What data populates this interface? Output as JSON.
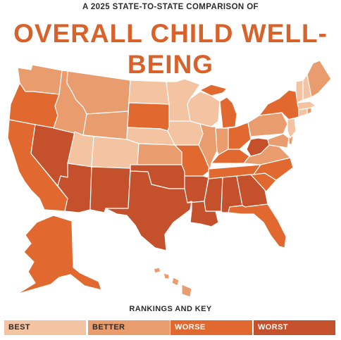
{
  "header": {
    "subtitle": "A 2025 STATE-TO-STATE COMPARISON OF",
    "title": "OVERALL CHILD WELL-BEING"
  },
  "colors": {
    "title": "#d9622b",
    "best": "#f3c3a2",
    "better": "#e99c6e",
    "worse": "#e1692f",
    "worst": "#c4512b"
  },
  "key": {
    "heading": "RANKINGS AND KEY",
    "items": [
      {
        "label": "BEST",
        "tier": "best",
        "text_color": "#2b2b2b"
      },
      {
        "label": "BETTER",
        "tier": "better",
        "text_color": "#2b2b2b"
      },
      {
        "label": "WORSE",
        "tier": "worse",
        "text_color": "#ffffff"
      },
      {
        "label": "WORST",
        "tier": "worst",
        "text_color": "#ffffff"
      }
    ]
  },
  "map": {
    "states": [
      {
        "id": "WA",
        "tier": "better"
      },
      {
        "id": "OR",
        "tier": "worse"
      },
      {
        "id": "CA",
        "tier": "worse"
      },
      {
        "id": "NV",
        "tier": "worst"
      },
      {
        "id": "ID",
        "tier": "better"
      },
      {
        "id": "MT",
        "tier": "better"
      },
      {
        "id": "WY",
        "tier": "better"
      },
      {
        "id": "UT",
        "tier": "best"
      },
      {
        "id": "CO",
        "tier": "best"
      },
      {
        "id": "AZ",
        "tier": "worst"
      },
      {
        "id": "NM",
        "tier": "worst"
      },
      {
        "id": "ND",
        "tier": "best"
      },
      {
        "id": "SD",
        "tier": "worse"
      },
      {
        "id": "NE",
        "tier": "best"
      },
      {
        "id": "KS",
        "tier": "better"
      },
      {
        "id": "OK",
        "tier": "worst"
      },
      {
        "id": "TX",
        "tier": "worst"
      },
      {
        "id": "MN",
        "tier": "best"
      },
      {
        "id": "IA",
        "tier": "best"
      },
      {
        "id": "MO",
        "tier": "worse"
      },
      {
        "id": "AR",
        "tier": "worst"
      },
      {
        "id": "LA",
        "tier": "worst"
      },
      {
        "id": "WI",
        "tier": "best"
      },
      {
        "id": "IL",
        "tier": "better"
      },
      {
        "id": "MI",
        "tier": "worse"
      },
      {
        "id": "IN",
        "tier": "better"
      },
      {
        "id": "OH",
        "tier": "worse"
      },
      {
        "id": "KY",
        "tier": "worse"
      },
      {
        "id": "TN",
        "tier": "worse"
      },
      {
        "id": "MS",
        "tier": "worst"
      },
      {
        "id": "AL",
        "tier": "worst"
      },
      {
        "id": "GA",
        "tier": "worst"
      },
      {
        "id": "FL",
        "tier": "worse"
      },
      {
        "id": "SC",
        "tier": "worse"
      },
      {
        "id": "NC",
        "tier": "worse"
      },
      {
        "id": "VA",
        "tier": "better"
      },
      {
        "id": "WV",
        "tier": "worst"
      },
      {
        "id": "PA",
        "tier": "better"
      },
      {
        "id": "NY",
        "tier": "worse"
      },
      {
        "id": "VT",
        "tier": "best"
      },
      {
        "id": "NH",
        "tier": "best"
      },
      {
        "id": "ME",
        "tier": "better"
      },
      {
        "id": "MA",
        "tier": "best"
      },
      {
        "id": "CT",
        "tier": "best"
      },
      {
        "id": "RI",
        "tier": "better"
      },
      {
        "id": "NJ",
        "tier": "best"
      },
      {
        "id": "DE",
        "tier": "better"
      },
      {
        "id": "MD",
        "tier": "better"
      },
      {
        "id": "AK",
        "tier": "worse"
      },
      {
        "id": "HI",
        "tier": "better"
      }
    ]
  }
}
